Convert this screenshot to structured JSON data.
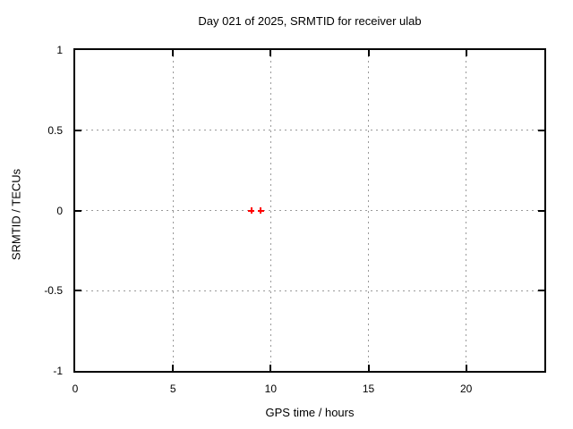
{
  "chart_data": {
    "type": "scatter",
    "title": "Day 021 of 2025, SRMTID for receiver ulab",
    "xlabel": "GPS time / hours",
    "ylabel": "SRMTID / TECUs",
    "xlim": [
      0,
      24
    ],
    "ylim": [
      -1,
      1
    ],
    "xticks": {
      "values": [
        0,
        5,
        10,
        15,
        20
      ],
      "labels": [
        "0",
        "5",
        "10",
        "15",
        "20"
      ]
    },
    "yticks": {
      "values": [
        1,
        0.5,
        0,
        -0.5,
        -1
      ],
      "labels": [
        "1",
        "0.5",
        "0",
        "-0.5",
        "-1"
      ]
    },
    "grid": "dotted",
    "legend": "none",
    "series": [
      {
        "marker": "plus",
        "color": "#ff0000",
        "points": [
          {
            "x": 9.0,
            "y": 0.0
          },
          {
            "x": 9.5,
            "y": 0.0
          }
        ]
      }
    ]
  },
  "colors": {
    "background": "#ffffff",
    "frame": "#000000",
    "grid": "#9a9a9a",
    "text": "#000000"
  }
}
